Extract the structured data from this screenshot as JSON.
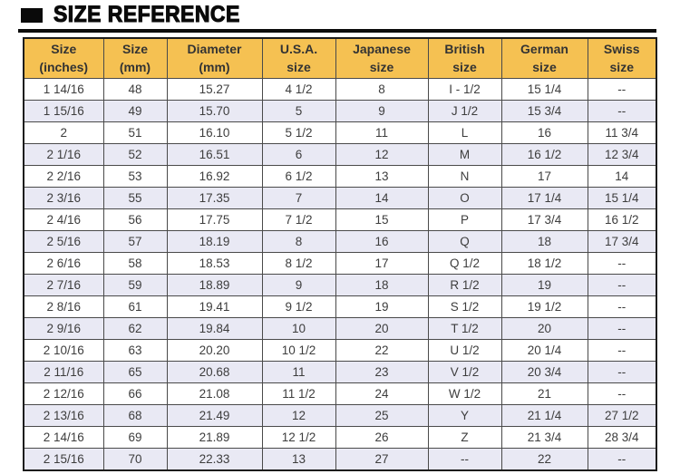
{
  "title": {
    "text": "SIZE REFERENCE"
  },
  "colors": {
    "header_bg": "#f5c152",
    "zebra_row_bg": "#e9e9f4",
    "grid_border": "#4a4a4a",
    "outer_border": "#1c1c1c",
    "title_color": "#0a0a0a",
    "body_text": "#3d3d3d"
  },
  "table": {
    "column_keys": [
      "inches",
      "mm",
      "diameter_mm",
      "usa",
      "japanese",
      "british",
      "german",
      "swiss"
    ],
    "headers": [
      {
        "line1": "Size",
        "line2": "(inches)"
      },
      {
        "line1": "Size",
        "line2": "(mm)"
      },
      {
        "line1": "Diameter",
        "line2": "(mm)"
      },
      {
        "line1": "U.S.A.",
        "line2": "size"
      },
      {
        "line1": "Japanese",
        "line2": "size"
      },
      {
        "line1": "British",
        "line2": "size"
      },
      {
        "line1": "German",
        "line2": "size"
      },
      {
        "line1": "Swiss",
        "line2": "size"
      }
    ],
    "rows": [
      [
        "1 14/16",
        "48",
        "15.27",
        "4 1/2",
        "8",
        "I - 1/2",
        "15 1/4",
        "--"
      ],
      [
        "1 15/16",
        "49",
        "15.70",
        "5",
        "9",
        "J 1/2",
        "15 3/4",
        "--"
      ],
      [
        "2",
        "51",
        "16.10",
        "5 1/2",
        "11",
        "L",
        "16",
        "11 3/4"
      ],
      [
        "2 1/16",
        "52",
        "16.51",
        "6",
        "12",
        "M",
        "16 1/2",
        "12 3/4"
      ],
      [
        "2 2/16",
        "53",
        "16.92",
        "6 1/2",
        "13",
        "N",
        "17",
        "14"
      ],
      [
        "2 3/16",
        "55",
        "17.35",
        "7",
        "14",
        "O",
        "17 1/4",
        "15 1/4"
      ],
      [
        "2 4/16",
        "56",
        "17.75",
        "7 1/2",
        "15",
        "P",
        "17 3/4",
        "16 1/2"
      ],
      [
        "2 5/16",
        "57",
        "18.19",
        "8",
        "16",
        "Q",
        "18",
        "17 3/4"
      ],
      [
        "2 6/16",
        "58",
        "18.53",
        "8 1/2",
        "17",
        "Q 1/2",
        "18 1/2",
        "--"
      ],
      [
        "2 7/16",
        "59",
        "18.89",
        "9",
        "18",
        "R 1/2",
        "19",
        "--"
      ],
      [
        "2 8/16",
        "61",
        "19.41",
        "9 1/2",
        "19",
        "S 1/2",
        "19 1/2",
        "--"
      ],
      [
        "2 9/16",
        "62",
        "19.84",
        "10",
        "20",
        "T 1/2",
        "20",
        "--"
      ],
      [
        "2 10/16",
        "63",
        "20.20",
        "10 1/2",
        "22",
        "U 1/2",
        "20 1/4",
        "--"
      ],
      [
        "2 11/16",
        "65",
        "20.68",
        "11",
        "23",
        "V 1/2",
        "20 3/4",
        "--"
      ],
      [
        "2 12/16",
        "66",
        "21.08",
        "11 1/2",
        "24",
        "W 1/2",
        "21",
        "--"
      ],
      [
        "2 13/16",
        "68",
        "21.49",
        "12",
        "25",
        "Y",
        "21 1/4",
        "27 1/2"
      ],
      [
        "2 14/16",
        "69",
        "21.89",
        "12 1/2",
        "26",
        "Z",
        "21 3/4",
        "28 3/4"
      ],
      [
        "2 15/16",
        "70",
        "22.33",
        "13",
        "27",
        "--",
        "22",
        "--"
      ]
    ]
  }
}
